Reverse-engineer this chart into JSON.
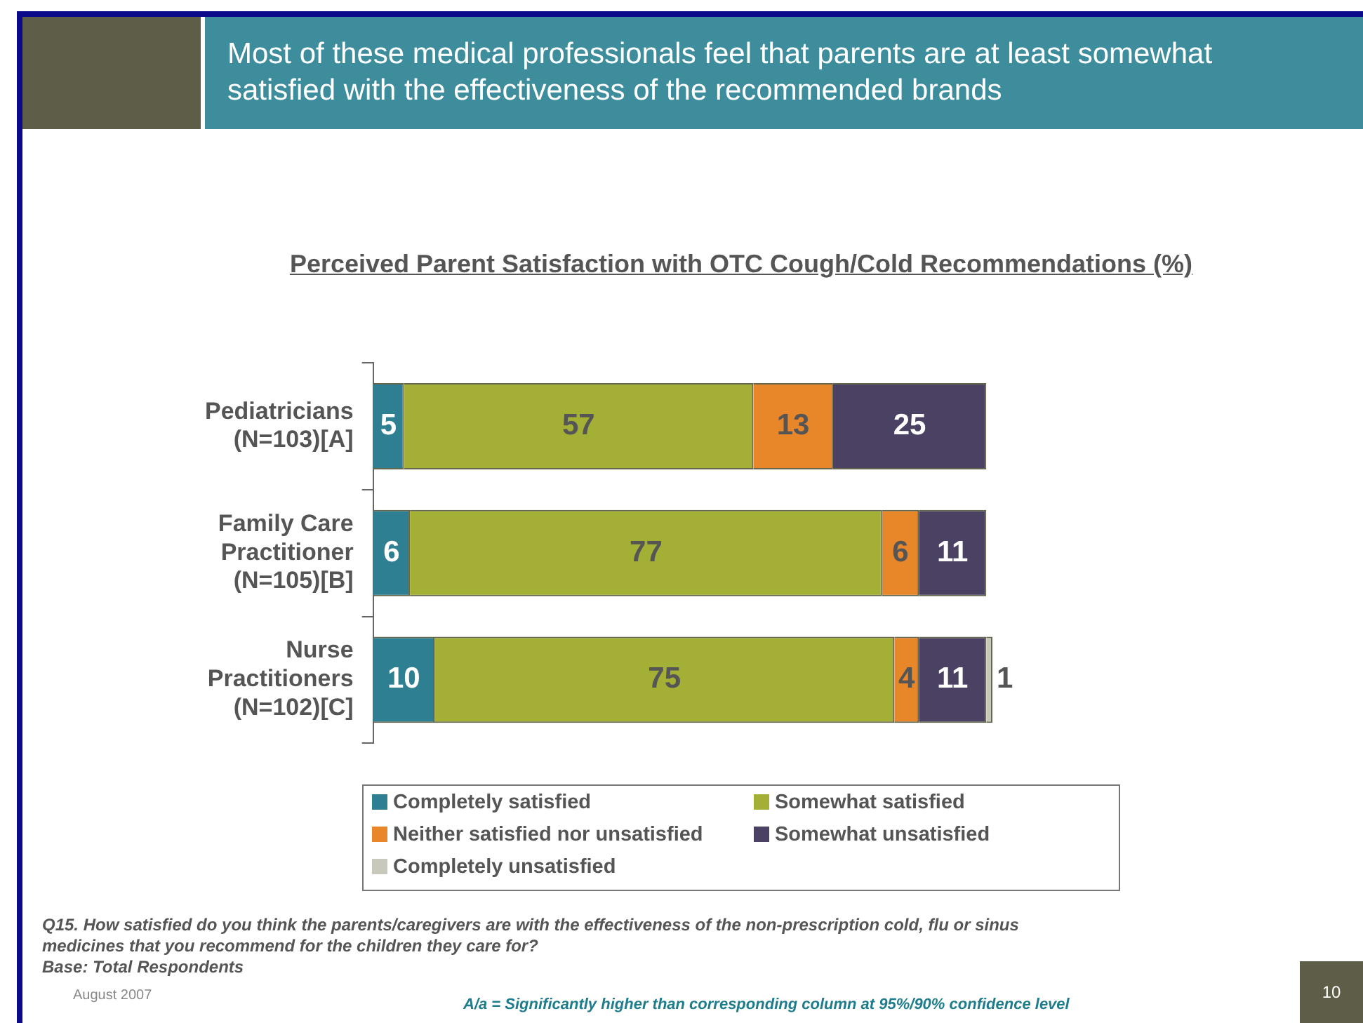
{
  "chart_data": {
    "type": "bar",
    "orientation": "horizontal",
    "stacked": true,
    "title": "Most of these medical professionals feel that parents are at least somewhat satisfied with the effectiveness of the recommended brands",
    "subtitle": "Perceived Parent Satisfaction with OTC Cough/Cold Recommendations (%)",
    "categories": [
      "Pediatricians\n(N=103)[A]",
      "Family Care\nPractitioner\n(N=105)[B]",
      "Nurse\nPractitioners\n(N=102)[C]"
    ],
    "series": [
      {
        "name": "Completely satisfied",
        "color": "#2e7f92",
        "values": [
          5,
          6,
          10
        ],
        "value_labels": [
          "5",
          "6",
          "10"
        ]
      },
      {
        "name": "Somewhat satisfied",
        "color": "#a3b035",
        "values": [
          57,
          77,
          75
        ],
        "value_labels": [
          "57",
          "77",
          "75"
        ]
      },
      {
        "name": "Neither satisfied nor unsatisfied",
        "color": "#e8862a",
        "values": [
          13,
          6,
          4
        ],
        "value_labels": [
          "13",
          "6",
          "4"
        ]
      },
      {
        "name": "Somewhat unsatisfied",
        "color": "#4a4163",
        "values": [
          25,
          11,
          11
        ],
        "value_labels": [
          "25",
          "11",
          "11"
        ]
      },
      {
        "name": "Completely unsatisfied",
        "color": "#c8c8bc",
        "values": [
          0,
          0,
          1
        ],
        "value_labels": [
          null,
          null,
          "1"
        ]
      }
    ],
    "legend": "bottom",
    "annotations": [
      "Q15. How satisfied do you think the parents/caregivers are with the effectiveness of the non-prescription cold, flu or sinus medicines that you recommend for the children they care for?",
      "Base: Total Respondents",
      "August 2007",
      "A/a = Significantly higher than corresponding column at 95%/90% confidence level",
      "10"
    ]
  }
}
